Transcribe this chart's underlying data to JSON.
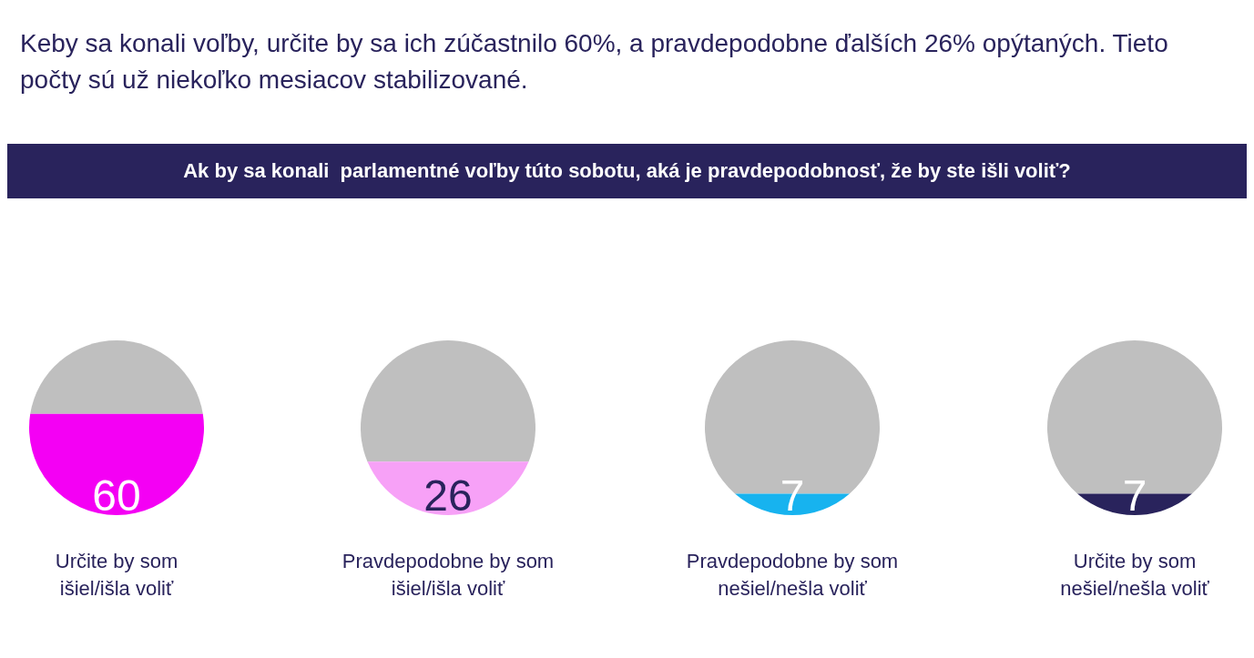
{
  "chart_data": {
    "type": "other",
    "title": "Keby sa konali voľby, určite by sa ich zúčastnilo 60%, a pravdepodobne ďalších 26% opýtaných. Tieto počty sú už niekoľko mesiacov stabilizované.",
    "subtitle": "Ak by sa konali  parlamentné voľby túto sobotu, aká je pravdepodobnosť, že by ste išli voliť?",
    "categories": [
      "Určite by som išiel/išla voliť",
      "Pravdepodobne by som išiel/išla voliť",
      "Pravdepodobne by som nešiel/nešla voliť",
      "Určite by som nešiel/nešla voliť"
    ],
    "values": [
      60,
      26,
      7,
      7
    ],
    "colors": [
      "#f400f4",
      "#f7a1f7",
      "#17b3ef",
      "#29235c"
    ],
    "data_labels": true
  }
}
